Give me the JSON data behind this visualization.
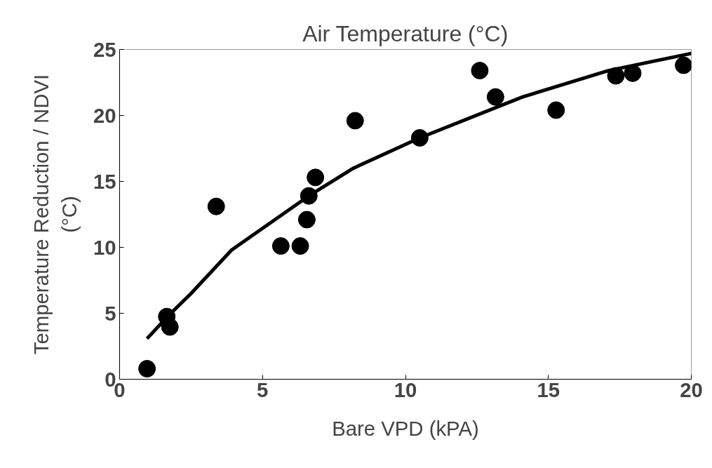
{
  "chart_data": {
    "type": "scatter",
    "title": "Air Temperature (°C)",
    "xlabel": "Bare VPD (kPA)",
    "ylabel": "Temperature Reduction / NDVI\n(°C)",
    "xlim": [
      0,
      20
    ],
    "ylim": [
      0,
      25
    ],
    "xticks": [
      0,
      5,
      10,
      15,
      20
    ],
    "yticks": [
      0,
      5,
      10,
      15,
      20,
      25
    ],
    "grid": false,
    "series": [
      {
        "marker": "circle",
        "color": "#000000",
        "x": [
          0.96,
          1.65,
          1.76,
          3.38,
          5.64,
          6.32,
          6.55,
          6.62,
          6.85,
          8.24,
          10.5,
          12.6,
          13.15,
          15.27,
          17.36,
          17.95,
          19.73
        ],
        "values": [
          0.8,
          4.75,
          3.96,
          13.1,
          10.1,
          10.1,
          12.1,
          13.9,
          15.3,
          19.6,
          18.3,
          23.4,
          21.4,
          20.4,
          23.0,
          23.2,
          23.8
        ]
      },
      {
        "type": "line",
        "color": "#000000",
        "line_style": "solid",
        "x": [
          0.96,
          1.7,
          2.5,
          3.92,
          6.62,
          8.18,
          10.5,
          14.1,
          17.1,
          20
        ],
        "values": [
          3.08,
          4.8,
          6.5,
          9.8,
          13.9,
          16.0,
          18.3,
          21.4,
          23.4,
          24.7
        ]
      }
    ]
  }
}
